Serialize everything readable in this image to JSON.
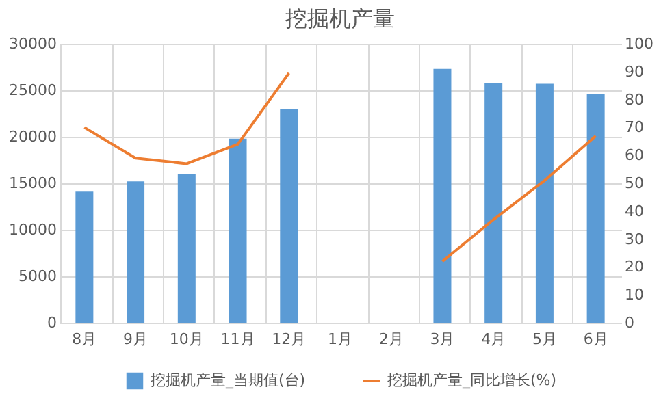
{
  "chart_data": {
    "type": "bar",
    "title": "挖掘机产量",
    "categories": [
      "8月",
      "9月",
      "10月",
      "11月",
      "12月",
      "1月",
      "2月",
      "3月",
      "4月",
      "5月",
      "6月"
    ],
    "series": [
      {
        "name": "挖掘机产量_当期值(台)",
        "color": "#5b9bd5",
        "values": [
          14100,
          15200,
          16000,
          19800,
          23000,
          null,
          null,
          27300,
          25800,
          25700,
          24600
        ]
      },
      {
        "name": "挖掘机产量_同比增长(%)",
        "color": "#ed7d31",
        "type": "line",
        "axis": "y2",
        "values": [
          70,
          59,
          57,
          64,
          89.5,
          null,
          null,
          22,
          37,
          51,
          67
        ]
      }
    ],
    "ylim": [
      0,
      30000
    ],
    "yticks": [
      0,
      5000,
      10000,
      15000,
      20000,
      25000,
      30000
    ],
    "y2lim": [
      0,
      100
    ],
    "y2ticks": [
      0,
      10,
      20,
      30,
      40,
      50,
      60,
      70,
      80,
      90,
      100
    ],
    "grid": true,
    "legend": "bottom"
  }
}
